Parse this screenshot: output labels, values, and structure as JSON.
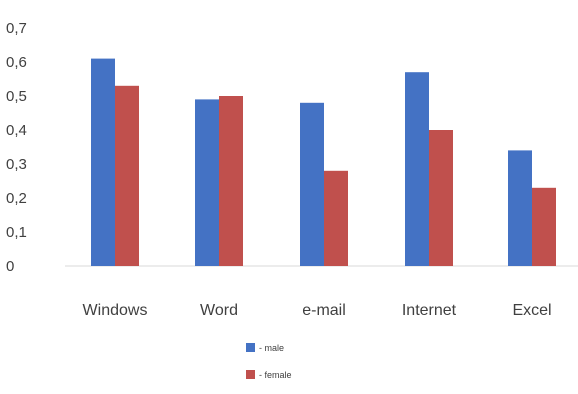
{
  "chart_data": {
    "type": "bar",
    "categories": [
      "Windows",
      "Word",
      "e-mail",
      "Internet",
      "Excel"
    ],
    "series": [
      {
        "name": "- male",
        "color": "#4472c4",
        "values": [
          0.61,
          0.49,
          0.48,
          0.57,
          0.34
        ]
      },
      {
        "name": "- female",
        "color": "#c0504d",
        "values": [
          0.53,
          0.5,
          0.28,
          0.4,
          0.23
        ]
      }
    ],
    "y_ticks": [
      "0",
      "0,1",
      "0,2",
      "0,3",
      "0,4",
      "0,5",
      "0,6",
      "0,7"
    ],
    "ylim": [
      0,
      0.7
    ],
    "grid": false,
    "legend_position": "bottom-center",
    "title": "",
    "xlabel": "",
    "ylabel": ""
  }
}
